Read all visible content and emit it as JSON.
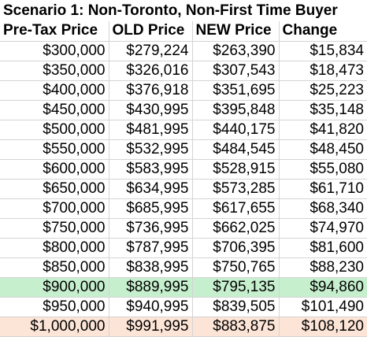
{
  "title": "Scenario 1: Non-Toronto, Non-First Time Buyer",
  "columns": [
    "Pre-Tax Price",
    "OLD Price",
    "NEW Price",
    "Change"
  ],
  "rows": [
    {
      "pre": "$300,000",
      "old": "$279,224",
      "new": "$263,390",
      "change": "$15,834"
    },
    {
      "pre": "$350,000",
      "old": "$326,016",
      "new": "$307,543",
      "change": "$18,473"
    },
    {
      "pre": "$400,000",
      "old": "$376,918",
      "new": "$351,695",
      "change": "$25,223"
    },
    {
      "pre": "$450,000",
      "old": "$430,995",
      "new": "$395,848",
      "change": "$35,148"
    },
    {
      "pre": "$500,000",
      "old": "$481,995",
      "new": "$440,175",
      "change": "$41,820"
    },
    {
      "pre": "$550,000",
      "old": "$532,995",
      "new": "$484,545",
      "change": "$48,450"
    },
    {
      "pre": "$600,000",
      "old": "$583,995",
      "new": "$528,915",
      "change": "$55,080"
    },
    {
      "pre": "$650,000",
      "old": "$634,995",
      "new": "$573,285",
      "change": "$61,710"
    },
    {
      "pre": "$700,000",
      "old": "$685,995",
      "new": "$617,655",
      "change": "$68,340"
    },
    {
      "pre": "$750,000",
      "old": "$736,995",
      "new": "$662,025",
      "change": "$74,970"
    },
    {
      "pre": "$800,000",
      "old": "$787,995",
      "new": "$706,395",
      "change": "$81,600"
    },
    {
      "pre": "$850,000",
      "old": "$838,995",
      "new": "$750,765",
      "change": "$88,230"
    },
    {
      "pre": "$900,000",
      "old": "$889,995",
      "new": "$795,135",
      "change": "$94,860",
      "highlight": "#c6efce"
    },
    {
      "pre": "$950,000",
      "old": "$940,995",
      "new": "$839,505",
      "change": "$101,490"
    },
    {
      "pre": "$1,000,000",
      "old": "$991,995",
      "new": "$883,875",
      "change": "$108,120",
      "highlight": "#fce4d6"
    }
  ]
}
